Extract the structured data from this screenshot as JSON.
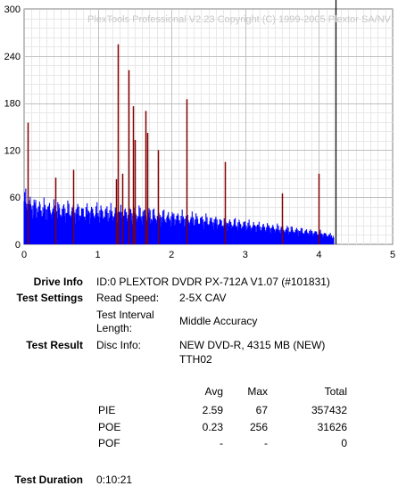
{
  "chart_data": {
    "type": "bar",
    "title": "PlexTools Professional V2.23 Copyright (C) 1999-2005 Plextor SA/NV",
    "xlim": [
      0,
      5
    ],
    "ylim": [
      0,
      300
    ],
    "xticks": [
      "0",
      "1",
      "2",
      "3",
      "4",
      "5"
    ],
    "yticks": [
      "0",
      "60",
      "120",
      "180",
      "240",
      "300"
    ],
    "grid": true,
    "series": [
      {
        "color": "#0000ff",
        "x": [
          0.0,
          0.1,
          0.2,
          0.3,
          0.4,
          0.5,
          0.6,
          0.7,
          0.8,
          0.9,
          1.0,
          1.1,
          1.2,
          1.3,
          1.4,
          1.5,
          1.6,
          1.7,
          1.8,
          1.9,
          2.0,
          2.1,
          2.2,
          2.3,
          2.4,
          2.5,
          2.6,
          2.7,
          2.8,
          2.9,
          3.0,
          3.1,
          3.2,
          3.3,
          3.4,
          3.5,
          3.6,
          3.7,
          3.8,
          3.9,
          4.0,
          4.1,
          4.2
        ],
        "values": [
          55,
          48,
          45,
          44,
          43,
          42,
          42,
          41,
          40,
          40,
          40,
          39,
          39,
          38,
          38,
          38,
          37,
          36,
          35,
          34,
          33,
          33,
          32,
          31,
          30,
          29,
          28,
          27,
          26,
          25,
          24,
          23,
          22,
          21,
          20,
          19,
          18,
          17,
          16,
          15,
          14,
          12,
          10
        ]
      },
      {
        "color": "#800000",
        "x": [
          0.05,
          0.42,
          0.67,
          1.25,
          1.27,
          1.33,
          1.42,
          1.48,
          1.5,
          1.65,
          1.67,
          1.82,
          2.2,
          2.72,
          3.5,
          4.0
        ],
        "values": [
          155,
          85,
          95,
          83,
          255,
          90,
          222,
          176,
          133,
          170,
          142,
          120,
          185,
          105,
          65,
          90
        ]
      }
    ],
    "cursor_x": 4.22
  },
  "drive": {
    "label": "Drive Info",
    "value": "ID:0 PLEXTOR DVDR PX-712A V1.07 (#101831)"
  },
  "settings": {
    "label": "Test Settings",
    "read_speed_label": "Read Speed:",
    "read_speed_value": "2-5X CAV",
    "interval_label_1": "Test Interval",
    "interval_label_2": "Length:",
    "interval_value": "Middle Accuracy"
  },
  "result": {
    "label": "Test Result",
    "disc_label": "Disc Info:",
    "disc_value_1": "NEW DVD-R, 4315 MB (NEW)",
    "disc_value_2": "TTH02"
  },
  "stats": {
    "headers": {
      "avg": "Avg",
      "max": "Max",
      "total": "Total"
    },
    "rows": [
      {
        "name": "PIE",
        "avg": "2.59",
        "max": "67",
        "total": "357432"
      },
      {
        "name": "POE",
        "avg": "0.23",
        "max": "256",
        "total": "31626"
      },
      {
        "name": "POF",
        "avg": "-",
        "max": "-",
        "total": "0"
      }
    ]
  },
  "duration": {
    "label": "Test Duration",
    "value": "0:10:21"
  }
}
